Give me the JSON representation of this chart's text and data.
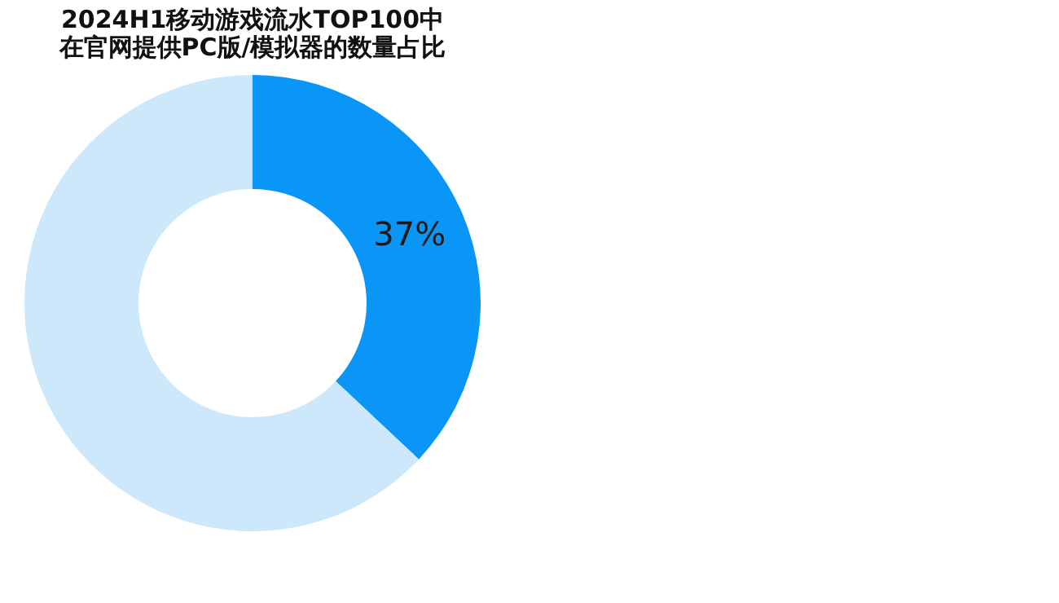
{
  "chart_data": {
    "type": "donut",
    "title": [
      "2024H1移动游戏流水TOP100中",
      "在官网提供PC版/模拟器的数量占比"
    ],
    "categories": [
      null,
      null
    ],
    "values": [
      37,
      63
    ],
    "colors": [
      "#0a96f7",
      "#cde8fa"
    ],
    "value_labels": [
      "37%",
      null
    ],
    "legend": false
  }
}
